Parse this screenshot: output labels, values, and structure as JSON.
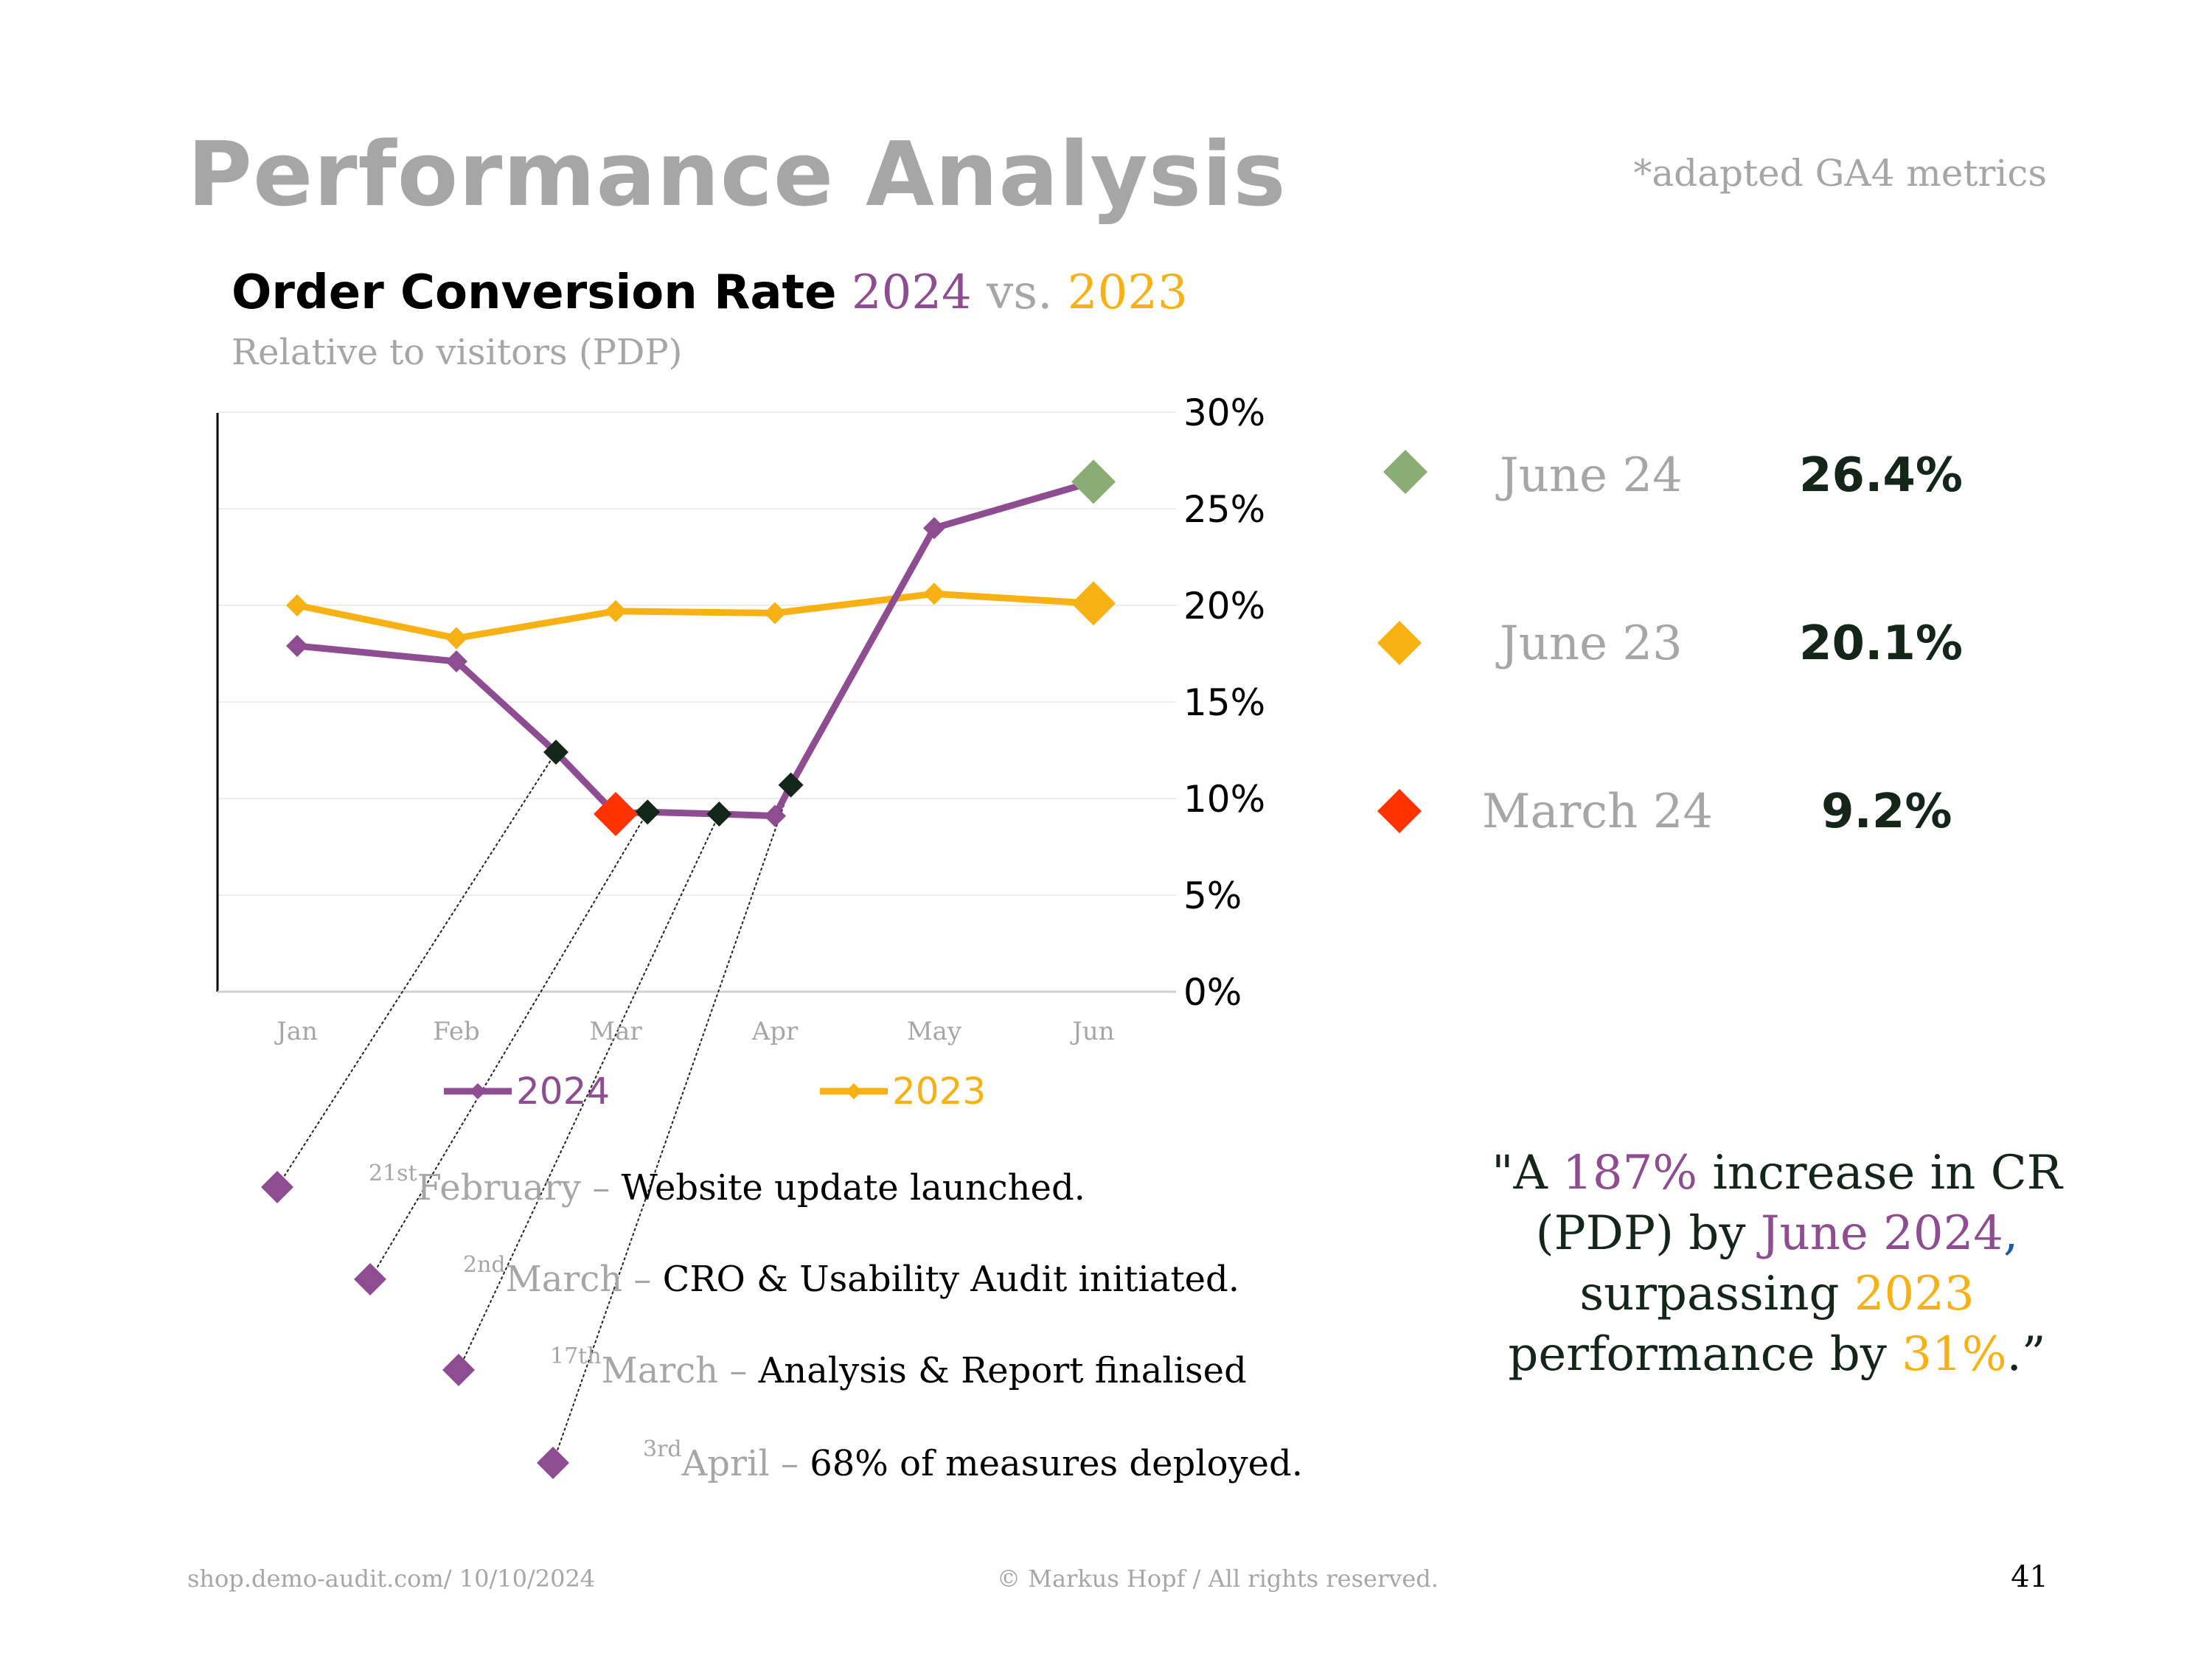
{
  "page": {
    "title": "Performance Analysis",
    "note": "*adapted GA4 metrics",
    "page_number": "41"
  },
  "chart_header": {
    "title": "Order Conversion Rate",
    "title_y2024": "2024",
    "title_vs": "vs.",
    "title_y2023": "2023",
    "subtitle": "Relative to visitors (PDP)"
  },
  "chart_data": {
    "type": "line",
    "categories": [
      "Jan",
      "Feb",
      "Mar",
      "Apr",
      "May",
      "Jun"
    ],
    "y_axis_position": "right",
    "ylim": [
      0,
      30
    ],
    "yticks": [
      "30%",
      "25%",
      "20%",
      "15%",
      "10%",
      "5%",
      "0%"
    ],
    "grid": true,
    "legend_placement": "bottom",
    "series": [
      {
        "name": "2024",
        "color": "#8e4d91",
        "x": [
          0,
          1,
          1.625,
          2,
          2.2,
          2.65,
          3,
          3.1,
          4,
          5
        ],
        "values": [
          17.9,
          17.1,
          12.4,
          9.2,
          9.3,
          9.2,
          9.1,
          10.7,
          24.0,
          26.4
        ]
      },
      {
        "name": "2023",
        "color": "#f8b113",
        "x": [
          0,
          1,
          2,
          3,
          4,
          5
        ],
        "values": [
          20.0,
          18.3,
          19.7,
          19.6,
          20.6,
          20.1
        ]
      }
    ],
    "event_markers": [
      {
        "x": 1.625,
        "value": 12.4
      },
      {
        "x": 2.2,
        "value": 9.3
      },
      {
        "x": 2.65,
        "value": 9.2
      },
      {
        "x": 3.1,
        "value": 10.7
      }
    ],
    "highlights": [
      {
        "x": 5,
        "value": 26.4,
        "color": "#8aad74"
      },
      {
        "x": 5,
        "value": 20.1,
        "color": "#f8b113"
      },
      {
        "x": 2,
        "value": 9.2,
        "color": "#ff3300"
      }
    ]
  },
  "kpis": [
    {
      "label": "June 24",
      "value": "26.4%",
      "color": "#8aad74"
    },
    {
      "label": "June 23",
      "value": "20.1%",
      "color": "#f8b113"
    },
    {
      "label": "March 24",
      "value": "9.2%",
      "color": "#ff3300"
    }
  ],
  "events": [
    {
      "day": "21st",
      "month": "February",
      "dash": "–",
      "text": "Website update launched."
    },
    {
      "day": "2nd",
      "month": "March",
      "dash": "–",
      "text": "CRO & Usability Audit initiated."
    },
    {
      "day": "17th",
      "month": "March",
      "dash": "–",
      "text": "Analysis & Report finalised"
    },
    {
      "day": "3rd",
      "month": "April",
      "dash": "–",
      "text": "68% of measures deployed."
    }
  ],
  "quote": {
    "p1": "\"A ",
    "pct1": "187%",
    "p2": " increase in CR (PDP) by ",
    "date": "June 2024",
    "comma": ",",
    "p3": " surpassing ",
    "year": "2023",
    "p4": " performance by ",
    "pct2": "31%",
    "p5": ".”"
  },
  "footer": {
    "left": "shop.demo-audit.com/ 10/10/2024",
    "center": "© Markus Hopf / All rights reserved."
  },
  "colors": {
    "series_2024": "#8e4d91",
    "series_2023": "#f8b113",
    "event_marker": "#13261a",
    "kpi_value": "#14261a",
    "muted": "#a6a6a6"
  }
}
